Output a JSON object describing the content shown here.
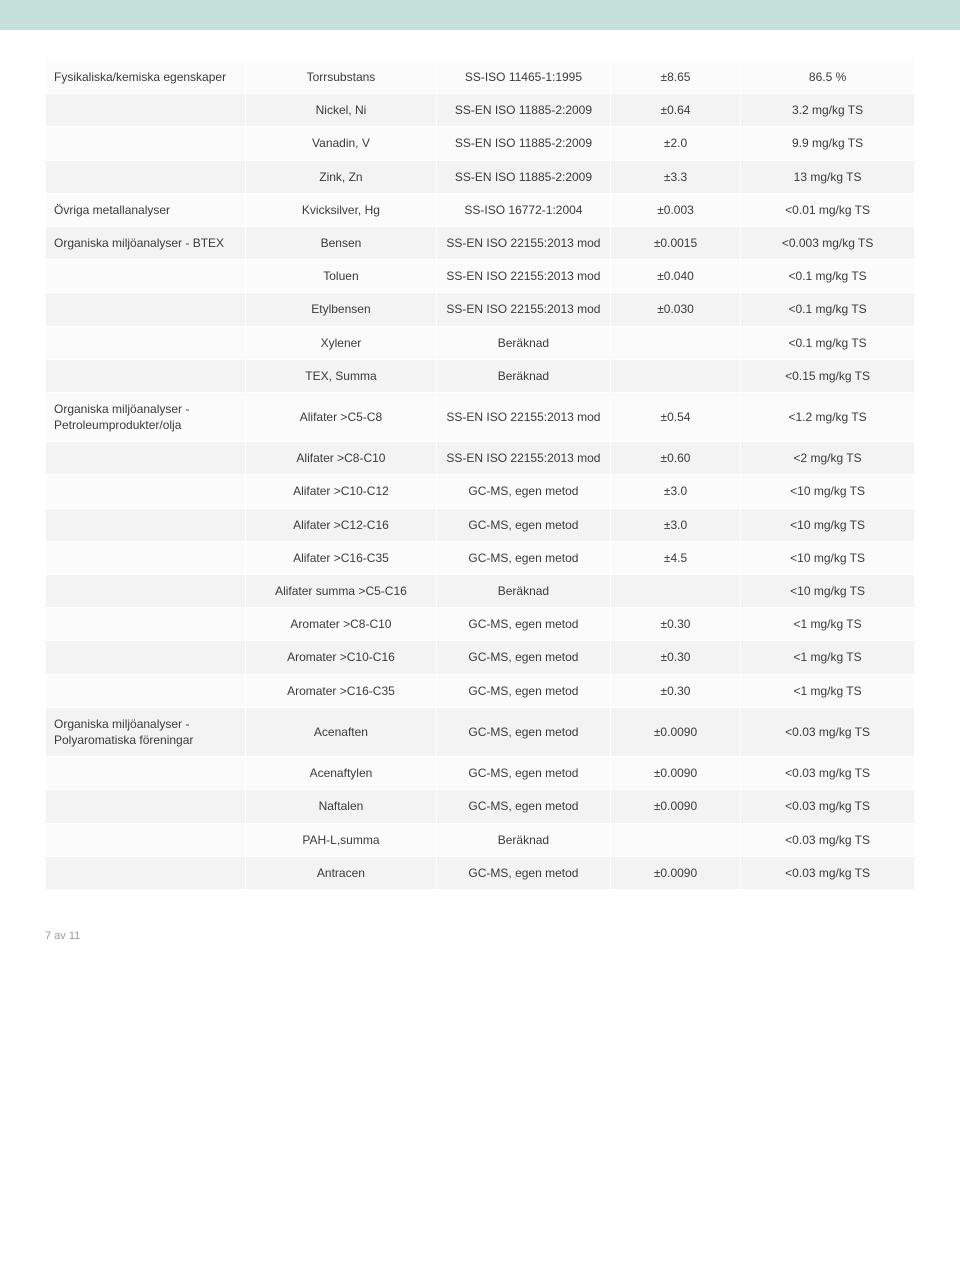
{
  "footer": "7 av 11",
  "rows": [
    {
      "z": "a",
      "cat": "Fysikaliska/kemiska egenskaper",
      "param": "Torrsubstans",
      "meth": "SS-ISO 11465-1:1995",
      "unc": "±8.65",
      "res": "86.5 %"
    },
    {
      "z": "b",
      "cat": "",
      "param": "Nickel, Ni",
      "meth": "SS-EN ISO 11885-2:2009",
      "unc": "±0.64",
      "res": "3.2 mg/kg TS"
    },
    {
      "z": "a",
      "cat": "",
      "param": "Vanadin, V",
      "meth": "SS-EN ISO 11885-2:2009",
      "unc": "±2.0",
      "res": "9.9 mg/kg TS"
    },
    {
      "z": "b",
      "cat": "",
      "param": "Zink, Zn",
      "meth": "SS-EN ISO 11885-2:2009",
      "unc": "±3.3",
      "res": "13 mg/kg TS"
    },
    {
      "z": "a",
      "cat": "Övriga metallanalyser",
      "param": "Kvicksilver, Hg",
      "meth": "SS-ISO 16772-1:2004",
      "unc": "±0.003",
      "res": "<0.01 mg/kg TS"
    },
    {
      "z": "b",
      "cat": "Organiska miljöanalyser - BTEX",
      "param": "Bensen",
      "meth": "SS-EN ISO 22155:2013 mod",
      "unc": "±0.0015",
      "res": "<0.003 mg/kg TS"
    },
    {
      "z": "a",
      "cat": "",
      "param": "Toluen",
      "meth": "SS-EN ISO 22155:2013 mod",
      "unc": "±0.040",
      "res": "<0.1 mg/kg TS"
    },
    {
      "z": "b",
      "cat": "",
      "param": "Etylbensen",
      "meth": "SS-EN ISO 22155:2013 mod",
      "unc": "±0.030",
      "res": "<0.1 mg/kg TS"
    },
    {
      "z": "a",
      "cat": "",
      "param": "Xylener",
      "meth": "Beräknad",
      "unc": "",
      "res": "<0.1 mg/kg TS"
    },
    {
      "z": "b",
      "cat": "",
      "param": "TEX, Summa",
      "meth": "Beräknad",
      "unc": "",
      "res": "<0.15 mg/kg TS"
    },
    {
      "z": "a",
      "cat": "Organiska miljöanalyser - Petroleumprodukter/olja",
      "param": "Alifater >C5-C8",
      "meth": "SS-EN ISO 22155:2013 mod",
      "unc": "±0.54",
      "res": "<1.2 mg/kg TS"
    },
    {
      "z": "b",
      "cat": "",
      "param": "Alifater >C8-C10",
      "meth": "SS-EN ISO 22155:2013 mod",
      "unc": "±0.60",
      "res": "<2 mg/kg TS"
    },
    {
      "z": "a",
      "cat": "",
      "param": "Alifater >C10-C12",
      "meth": "GC-MS, egen metod",
      "unc": "±3.0",
      "res": "<10 mg/kg TS"
    },
    {
      "z": "b",
      "cat": "",
      "param": "Alifater >C12-C16",
      "meth": "GC-MS, egen metod",
      "unc": "±3.0",
      "res": "<10 mg/kg TS"
    },
    {
      "z": "a",
      "cat": "",
      "param": "Alifater >C16-C35",
      "meth": "GC-MS, egen metod",
      "unc": "±4.5",
      "res": "<10 mg/kg TS"
    },
    {
      "z": "b",
      "cat": "",
      "param": "Alifater summa >C5-C16",
      "meth": "Beräknad",
      "unc": "",
      "res": "<10 mg/kg TS"
    },
    {
      "z": "a",
      "cat": "",
      "param": "Aromater >C8-C10",
      "meth": "GC-MS, egen metod",
      "unc": "±0.30",
      "res": "<1 mg/kg TS"
    },
    {
      "z": "b",
      "cat": "",
      "param": "Aromater >C10-C16",
      "meth": "GC-MS, egen metod",
      "unc": "±0.30",
      "res": "<1 mg/kg TS"
    },
    {
      "z": "a",
      "cat": "",
      "param": "Aromater >C16-C35",
      "meth": "GC-MS, egen metod",
      "unc": "±0.30",
      "res": "<1 mg/kg TS"
    },
    {
      "z": "b",
      "cat": "Organiska miljöanalyser - Polyaromatiska föreningar",
      "param": "Acenaften",
      "meth": "GC-MS, egen metod",
      "unc": "±0.0090",
      "res": "<0.03 mg/kg TS"
    },
    {
      "z": "a",
      "cat": "",
      "param": "Acenaftylen",
      "meth": "GC-MS, egen metod",
      "unc": "±0.0090",
      "res": "<0.03 mg/kg TS"
    },
    {
      "z": "b",
      "cat": "",
      "param": "Naftalen",
      "meth": "GC-MS, egen metod",
      "unc": "±0.0090",
      "res": "<0.03 mg/kg TS"
    },
    {
      "z": "a",
      "cat": "",
      "param": "PAH-L,summa",
      "meth": "Beräknad",
      "unc": "",
      "res": "<0.03 mg/kg TS"
    },
    {
      "z": "b",
      "cat": "",
      "param": "Antracen",
      "meth": "GC-MS, egen metod",
      "unc": "±0.0090",
      "res": "<0.03 mg/kg TS"
    }
  ]
}
